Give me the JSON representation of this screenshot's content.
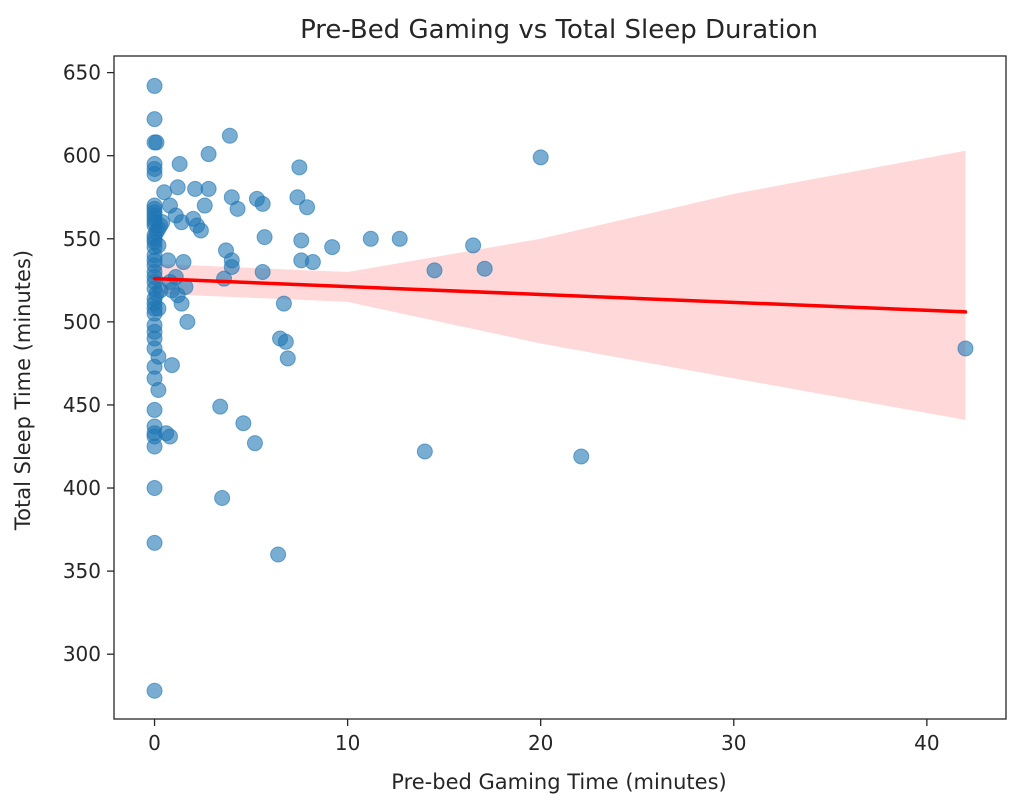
{
  "chart_data": {
    "type": "scatter",
    "title": "Pre-Bed Gaming vs Total Sleep Duration",
    "xlabel": "Pre-bed Gaming Time (minutes)",
    "ylabel": "Total Sleep Time (minutes)",
    "xlim": [
      -2.1,
      44.1
    ],
    "ylim": [
      261,
      660
    ],
    "xticks": [
      0,
      10,
      20,
      30,
      40
    ],
    "yticks": [
      300,
      350,
      400,
      450,
      500,
      550,
      600,
      650
    ],
    "grid": false,
    "legend": "none",
    "colors": {
      "points": "#1f77b4",
      "regression_line": "#ff0000",
      "confidence_band": "#ffcccc",
      "axes": "#262626"
    },
    "series": [
      {
        "kind": "points",
        "points": [
          [
            0,
            642
          ],
          [
            0,
            622
          ],
          [
            0,
            608
          ],
          [
            0.1,
            608
          ],
          [
            0,
            595
          ],
          [
            0,
            592
          ],
          [
            0,
            589
          ],
          [
            0,
            570
          ],
          [
            0,
            568
          ],
          [
            0,
            566
          ],
          [
            0,
            564
          ],
          [
            0,
            562
          ],
          [
            0,
            560
          ],
          [
            0,
            558
          ],
          [
            0.2,
            556
          ],
          [
            0.3,
            558
          ],
          [
            0.4,
            560
          ],
          [
            0.1,
            554
          ],
          [
            0,
            552
          ],
          [
            0,
            550
          ],
          [
            0,
            548
          ],
          [
            0,
            545
          ],
          [
            0.2,
            546
          ],
          [
            0,
            540
          ],
          [
            0,
            537
          ],
          [
            0,
            534
          ],
          [
            0,
            530
          ],
          [
            0,
            527
          ],
          [
            0,
            524
          ],
          [
            0,
            520
          ],
          [
            0.1,
            517
          ],
          [
            0,
            514
          ],
          [
            0,
            511
          ],
          [
            0,
            508
          ],
          [
            0,
            505
          ],
          [
            0.2,
            508
          ],
          [
            0.3,
            519
          ],
          [
            0,
            498
          ],
          [
            0,
            494
          ],
          [
            0,
            490
          ],
          [
            0,
            484
          ],
          [
            0.2,
            479
          ],
          [
            0,
            473
          ],
          [
            0,
            466
          ],
          [
            0.2,
            459
          ],
          [
            0,
            447
          ],
          [
            0,
            437
          ],
          [
            0,
            433
          ],
          [
            0,
            431
          ],
          [
            0.6,
            433
          ],
          [
            0.8,
            431
          ],
          [
            0,
            425
          ],
          [
            0,
            400
          ],
          [
            0,
            367
          ],
          [
            0,
            278
          ],
          [
            0.5,
            578
          ],
          [
            0.8,
            570
          ],
          [
            1.2,
            581
          ],
          [
            1.3,
            595
          ],
          [
            1.1,
            564
          ],
          [
            1.4,
            560
          ],
          [
            0.7,
            537
          ],
          [
            1.5,
            536
          ],
          [
            0.8,
            524
          ],
          [
            0.9,
            519
          ],
          [
            1.1,
            527
          ],
          [
            1.2,
            516
          ],
          [
            1.4,
            511
          ],
          [
            1.6,
            521
          ],
          [
            0.9,
            474
          ],
          [
            1.7,
            500
          ],
          [
            2.0,
            562
          ],
          [
            2.1,
            580
          ],
          [
            2.2,
            558
          ],
          [
            2.4,
            555
          ],
          [
            2.6,
            570
          ],
          [
            2.8,
            580
          ],
          [
            2.8,
            601
          ],
          [
            3.4,
            449
          ],
          [
            3.5,
            394
          ],
          [
            3.6,
            526
          ],
          [
            3.7,
            543
          ],
          [
            3.9,
            612
          ],
          [
            4.0,
            575
          ],
          [
            4.0,
            533
          ],
          [
            4.0,
            537
          ],
          [
            4.3,
            568
          ],
          [
            4.6,
            439
          ],
          [
            5.2,
            427
          ],
          [
            5.3,
            574
          ],
          [
            5.6,
            571
          ],
          [
            5.6,
            530
          ],
          [
            5.7,
            551
          ],
          [
            6.4,
            360
          ],
          [
            6.5,
            490
          ],
          [
            6.7,
            511
          ],
          [
            6.8,
            488
          ],
          [
            6.9,
            478
          ],
          [
            7.4,
            575
          ],
          [
            7.5,
            593
          ],
          [
            7.6,
            549
          ],
          [
            7.6,
            537
          ],
          [
            7.9,
            569
          ],
          [
            8.2,
            536
          ],
          [
            9.2,
            545
          ],
          [
            11.2,
            550
          ],
          [
            12.7,
            550
          ],
          [
            14.0,
            422
          ],
          [
            14.5,
            531
          ],
          [
            16.5,
            546
          ],
          [
            17.1,
            532
          ],
          [
            20.0,
            599
          ],
          [
            22.1,
            419
          ],
          [
            42.0,
            484
          ]
        ]
      },
      {
        "kind": "regression",
        "line": [
          [
            0,
            526
          ],
          [
            42,
            506
          ]
        ],
        "ci_upper": [
          [
            0,
            535
          ],
          [
            10,
            530
          ],
          [
            20,
            550
          ],
          [
            30,
            577
          ],
          [
            42,
            603
          ]
        ],
        "ci_lower": [
          [
            0,
            517
          ],
          [
            10,
            512
          ],
          [
            20,
            487
          ],
          [
            30,
            466
          ],
          [
            42,
            441
          ]
        ]
      }
    ]
  }
}
